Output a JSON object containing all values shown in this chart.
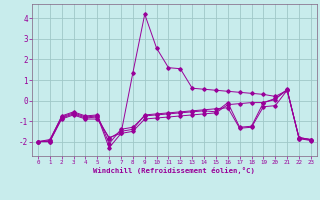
{
  "xlabel": "Windchill (Refroidissement éolien,°C)",
  "background_color": "#c8ecec",
  "grid_color": "#a0c8c8",
  "line_color": "#990099",
  "spine_color": "#806080",
  "x_ticks": [
    0,
    1,
    2,
    3,
    4,
    5,
    6,
    7,
    8,
    9,
    10,
    11,
    12,
    13,
    14,
    15,
    16,
    17,
    18,
    19,
    20,
    21,
    22,
    23
  ],
  "y_ticks": [
    -2,
    -1,
    0,
    1,
    2,
    3,
    4
  ],
  "ylim": [
    -2.7,
    4.7
  ],
  "xlim": [
    -0.5,
    23.5
  ],
  "series": [
    [
      -2.0,
      -2.0,
      -0.9,
      -0.7,
      -0.9,
      -0.9,
      -1.8,
      -1.6,
      1.35,
      4.2,
      2.55,
      1.6,
      1.55,
      0.6,
      0.55,
      0.5,
      0.45,
      0.4,
      0.35,
      0.3,
      0.2,
      0.5,
      -1.8,
      -1.9
    ],
    [
      -2.0,
      -2.0,
      -0.85,
      -0.65,
      -0.85,
      -0.8,
      -1.85,
      -1.5,
      -1.4,
      -0.7,
      -0.65,
      -0.6,
      -0.55,
      -0.5,
      -0.45,
      -0.4,
      -0.35,
      -1.35,
      -1.3,
      -0.3,
      -0.25,
      0.5,
      -1.8,
      -1.9
    ],
    [
      -2.0,
      -1.9,
      -0.8,
      -0.6,
      -0.8,
      -0.75,
      -2.3,
      -1.6,
      -1.5,
      -0.9,
      -0.85,
      -0.8,
      -0.75,
      -0.7,
      -0.65,
      -0.6,
      -0.2,
      -0.15,
      -0.1,
      -0.1,
      0.1,
      0.5,
      -1.85,
      -1.95
    ],
    [
      -2.0,
      -1.95,
      -0.75,
      -0.55,
      -0.75,
      -0.7,
      -2.1,
      -1.4,
      -1.3,
      -0.75,
      -0.7,
      -0.65,
      -0.6,
      -0.55,
      -0.5,
      -0.55,
      -0.1,
      -1.3,
      -1.25,
      -0.1,
      0.05,
      0.55,
      -1.85,
      -1.9
    ]
  ]
}
